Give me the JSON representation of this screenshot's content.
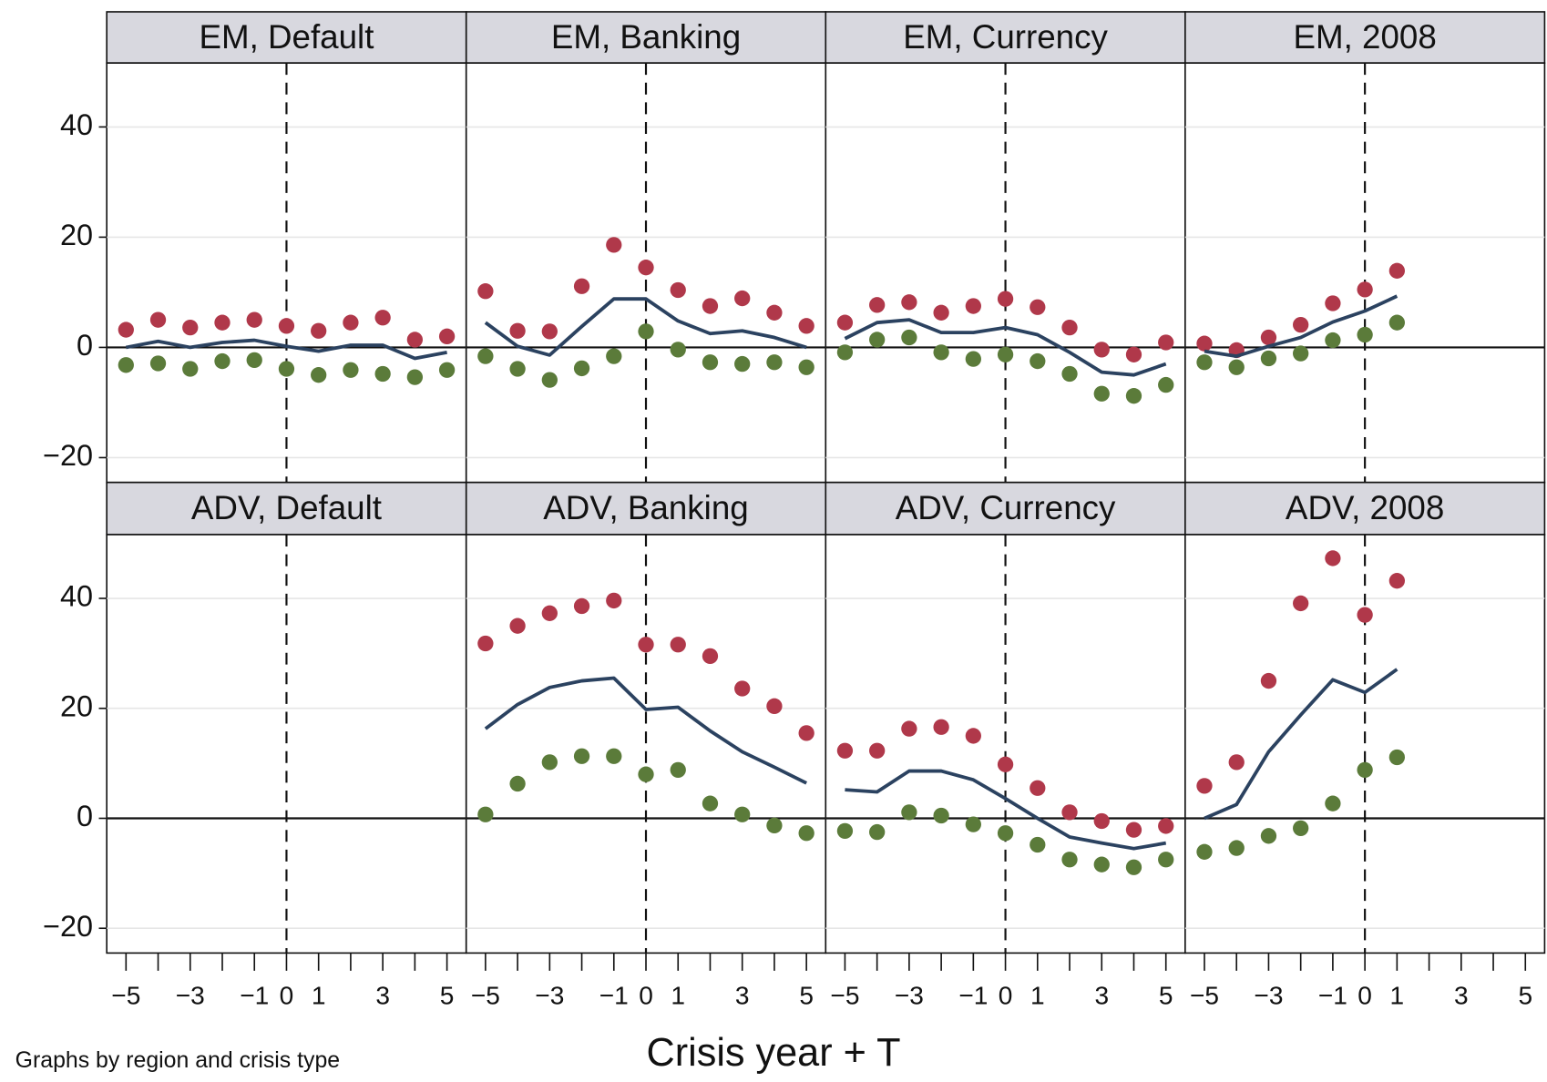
{
  "chart_data": [
    {
      "type": "line",
      "title": "EM, Default",
      "x": [
        -5,
        -4,
        -3,
        -2,
        -1,
        0,
        1,
        2,
        3,
        4,
        5
      ],
      "xlim": [
        -5.6,
        5.6
      ],
      "ylim": [
        -24.5,
        51.6
      ],
      "yticks": [
        {
          "value": -20,
          "label": "−20"
        },
        0,
        20,
        40
      ],
      "grid": true,
      "hline": 0,
      "vline": 0,
      "series": [
        {
          "color": "#b0384a",
          "mode": "markers",
          "values": [
            3.2,
            5.0,
            3.6,
            4.5,
            5.0,
            3.9,
            3.0,
            4.5,
            5.4,
            1.4,
            2.0
          ]
        },
        {
          "color": "#2b4260",
          "mode": "line",
          "values": [
            0,
            1.1,
            0,
            0.9,
            1.3,
            0.2,
            -0.7,
            0.4,
            0.4,
            -2.0,
            -0.9
          ]
        },
        {
          "color": "#5b7b3a",
          "mode": "markers",
          "values": [
            -3.2,
            -2.9,
            -3.9,
            -2.5,
            -2.3,
            -3.9,
            -5.0,
            -4.1,
            -4.8,
            -5.4,
            -4.1
          ]
        }
      ]
    },
    {
      "type": "line",
      "title": "EM, Banking",
      "x": [
        -5,
        -4,
        -3,
        -2,
        -1,
        0,
        1,
        2,
        3,
        4,
        5
      ],
      "xlim": [
        -5.6,
        5.6
      ],
      "ylim": [
        -24.5,
        51.6
      ],
      "yticks": [
        {
          "value": -20,
          "label": "−20"
        },
        0,
        20,
        40
      ],
      "grid": true,
      "hline": 0,
      "vline": 0,
      "series": [
        {
          "color": "#b0384a",
          "mode": "markers",
          "values": [
            10.2,
            3.0,
            2.9,
            11.1,
            18.6,
            14.5,
            10.4,
            7.5,
            8.9,
            6.3,
            3.9
          ]
        },
        {
          "color": "#2b4260",
          "mode": "line",
          "values": [
            4.5,
            0.2,
            -1.4,
            3.8,
            8.8,
            8.8,
            4.8,
            2.5,
            3.0,
            1.8,
            0
          ]
        },
        {
          "color": "#5b7b3a",
          "mode": "markers",
          "values": [
            -1.6,
            -3.9,
            -5.9,
            -3.8,
            -1.6,
            2.9,
            -0.4,
            -2.7,
            -3.0,
            -2.7,
            -3.6
          ]
        }
      ]
    },
    {
      "type": "line",
      "title": "EM, Currency",
      "x": [
        -5,
        -4,
        -3,
        -2,
        -1,
        0,
        1,
        2,
        3,
        4,
        5
      ],
      "xlim": [
        -5.6,
        5.6
      ],
      "ylim": [
        -24.5,
        51.6
      ],
      "yticks": [
        {
          "value": -20,
          "label": "−20"
        },
        0,
        20,
        40
      ],
      "grid": true,
      "hline": 0,
      "vline": 0,
      "series": [
        {
          "color": "#b0384a",
          "mode": "markers",
          "values": [
            4.5,
            7.7,
            8.2,
            6.3,
            7.5,
            8.8,
            7.3,
            3.6,
            -0.4,
            -1.3,
            0.9
          ]
        },
        {
          "color": "#2b4260",
          "mode": "line",
          "values": [
            1.6,
            4.5,
            5.0,
            2.7,
            2.7,
            3.6,
            2.3,
            -0.9,
            -4.5,
            -5.0,
            -3.0
          ]
        },
        {
          "color": "#5b7b3a",
          "mode": "markers",
          "values": [
            -0.9,
            1.4,
            1.8,
            -0.9,
            -2.1,
            -1.3,
            -2.5,
            -4.8,
            -8.4,
            -8.8,
            -6.8
          ]
        }
      ]
    },
    {
      "type": "line",
      "title": "EM, 2008",
      "x": [
        -5,
        -4,
        -3,
        -2,
        -1,
        0,
        1
      ],
      "xlim": [
        -5.6,
        5.6
      ],
      "ylim": [
        -24.5,
        51.6
      ],
      "yticks": [
        {
          "value": -20,
          "label": "−20"
        },
        0,
        20,
        40
      ],
      "grid": true,
      "hline": 0,
      "vline": 0,
      "series": [
        {
          "color": "#b0384a",
          "mode": "markers",
          "values": [
            0.7,
            -0.5,
            1.8,
            4.1,
            8.0,
            10.5,
            13.9
          ]
        },
        {
          "color": "#2b4260",
          "mode": "line",
          "values": [
            -0.7,
            -1.6,
            0.2,
            1.8,
            4.6,
            6.6,
            9.3
          ]
        },
        {
          "color": "#5b7b3a",
          "mode": "markers",
          "values": [
            -2.7,
            -3.6,
            -2.0,
            -1.1,
            1.3,
            2.3,
            4.5
          ]
        }
      ]
    },
    {
      "type": "line",
      "title": "ADV, Default",
      "xlim": [
        -5.6,
        5.6
      ],
      "ylim": [
        -24.5,
        51.6
      ],
      "yticks": [
        {
          "value": -20,
          "label": "−20"
        },
        0,
        20,
        40
      ],
      "grid": true,
      "hline": 0,
      "vline": 0,
      "xticks": [
        {
          "value": -5,
          "label": "−5"
        },
        {
          "value": -3,
          "label": "−3"
        },
        {
          "value": -1,
          "label": "−1"
        },
        0,
        1,
        3,
        5
      ],
      "xminor": [
        -4,
        -2,
        2,
        4
      ],
      "series": []
    },
    {
      "type": "line",
      "title": "ADV, Banking",
      "x": [
        -5,
        -4,
        -3,
        -2,
        -1,
        0,
        1,
        2,
        3,
        4,
        5
      ],
      "xlim": [
        -5.6,
        5.6
      ],
      "ylim": [
        -24.5,
        51.6
      ],
      "yticks": [
        {
          "value": -20,
          "label": "−20"
        },
        0,
        20,
        40
      ],
      "grid": true,
      "hline": 0,
      "vline": 0,
      "xticks": [
        {
          "value": -5,
          "label": "−5"
        },
        {
          "value": -3,
          "label": "−3"
        },
        {
          "value": -1,
          "label": "−1"
        },
        0,
        1,
        3,
        5
      ],
      "xminor": [
        -4,
        -2,
        2,
        4
      ],
      "series": [
        {
          "color": "#b0384a",
          "mode": "markers",
          "values": [
            31.8,
            35.0,
            37.3,
            38.6,
            39.6,
            31.6,
            31.6,
            29.5,
            23.6,
            20.4,
            15.5
          ]
        },
        {
          "color": "#2b4260",
          "mode": "line",
          "values": [
            16.3,
            20.7,
            23.8,
            25.0,
            25.5,
            19.8,
            20.2,
            15.9,
            12.1,
            9.3,
            6.4
          ]
        },
        {
          "color": "#5b7b3a",
          "mode": "markers",
          "values": [
            0.7,
            6.3,
            10.2,
            11.3,
            11.3,
            8.0,
            8.8,
            2.7,
            0.7,
            -1.3,
            -2.7
          ]
        }
      ]
    },
    {
      "type": "line",
      "title": "ADV, Currency",
      "x": [
        -5,
        -4,
        -3,
        -2,
        -1,
        0,
        1,
        2,
        3,
        4,
        5
      ],
      "xlim": [
        -5.6,
        5.6
      ],
      "ylim": [
        -24.5,
        51.6
      ],
      "yticks": [
        {
          "value": -20,
          "label": "−20"
        },
        0,
        20,
        40
      ],
      "grid": true,
      "hline": 0,
      "vline": 0,
      "xticks": [
        {
          "value": -5,
          "label": "−5"
        },
        {
          "value": -3,
          "label": "−3"
        },
        {
          "value": -1,
          "label": "−1"
        },
        0,
        1,
        3,
        5
      ],
      "xminor": [
        -4,
        -2,
        2,
        4
      ],
      "series": [
        {
          "color": "#b0384a",
          "mode": "markers",
          "values": [
            12.3,
            12.3,
            16.3,
            16.6,
            15.0,
            9.8,
            5.5,
            1.1,
            -0.5,
            -2.1,
            -1.4
          ]
        },
        {
          "color": "#2b4260",
          "mode": "line",
          "values": [
            5.2,
            4.8,
            8.6,
            8.6,
            7.0,
            3.6,
            0,
            -3.4,
            -4.5,
            -5.5,
            -4.5
          ]
        },
        {
          "color": "#5b7b3a",
          "mode": "markers",
          "values": [
            -2.3,
            -2.5,
            1.1,
            0.5,
            -1.1,
            -2.7,
            -4.8,
            -7.5,
            -8.4,
            -8.9,
            -7.5
          ]
        }
      ]
    },
    {
      "type": "line",
      "title": "ADV, 2008",
      "x": [
        -5,
        -4,
        -3,
        -2,
        -1,
        0,
        1
      ],
      "xlim": [
        -5.6,
        5.6
      ],
      "ylim": [
        -24.5,
        51.6
      ],
      "yticks": [
        {
          "value": -20,
          "label": "−20"
        },
        0,
        20,
        40
      ],
      "grid": true,
      "hline": 0,
      "vline": 0,
      "xticks": [
        {
          "value": -5,
          "label": "−5"
        },
        {
          "value": -3,
          "label": "−3"
        },
        {
          "value": -1,
          "label": "−1"
        },
        0,
        1,
        3,
        5
      ],
      "xminor": [
        -4,
        -2,
        2,
        4
      ],
      "series": [
        {
          "color": "#b0384a",
          "mode": "markers",
          "values": [
            5.9,
            10.2,
            25.0,
            39.1,
            47.3,
            37.0,
            43.2
          ]
        },
        {
          "color": "#2b4260",
          "mode": "line",
          "values": [
            0,
            2.5,
            12.1,
            18.8,
            25.2,
            22.9,
            27.1
          ]
        },
        {
          "color": "#5b7b3a",
          "mode": "markers",
          "values": [
            -6.1,
            -5.4,
            -3.2,
            -1.8,
            2.7,
            8.8,
            11.1
          ]
        }
      ]
    }
  ],
  "xlabel": "Crisis year + T",
  "note": "Graphs by region and crisis type"
}
